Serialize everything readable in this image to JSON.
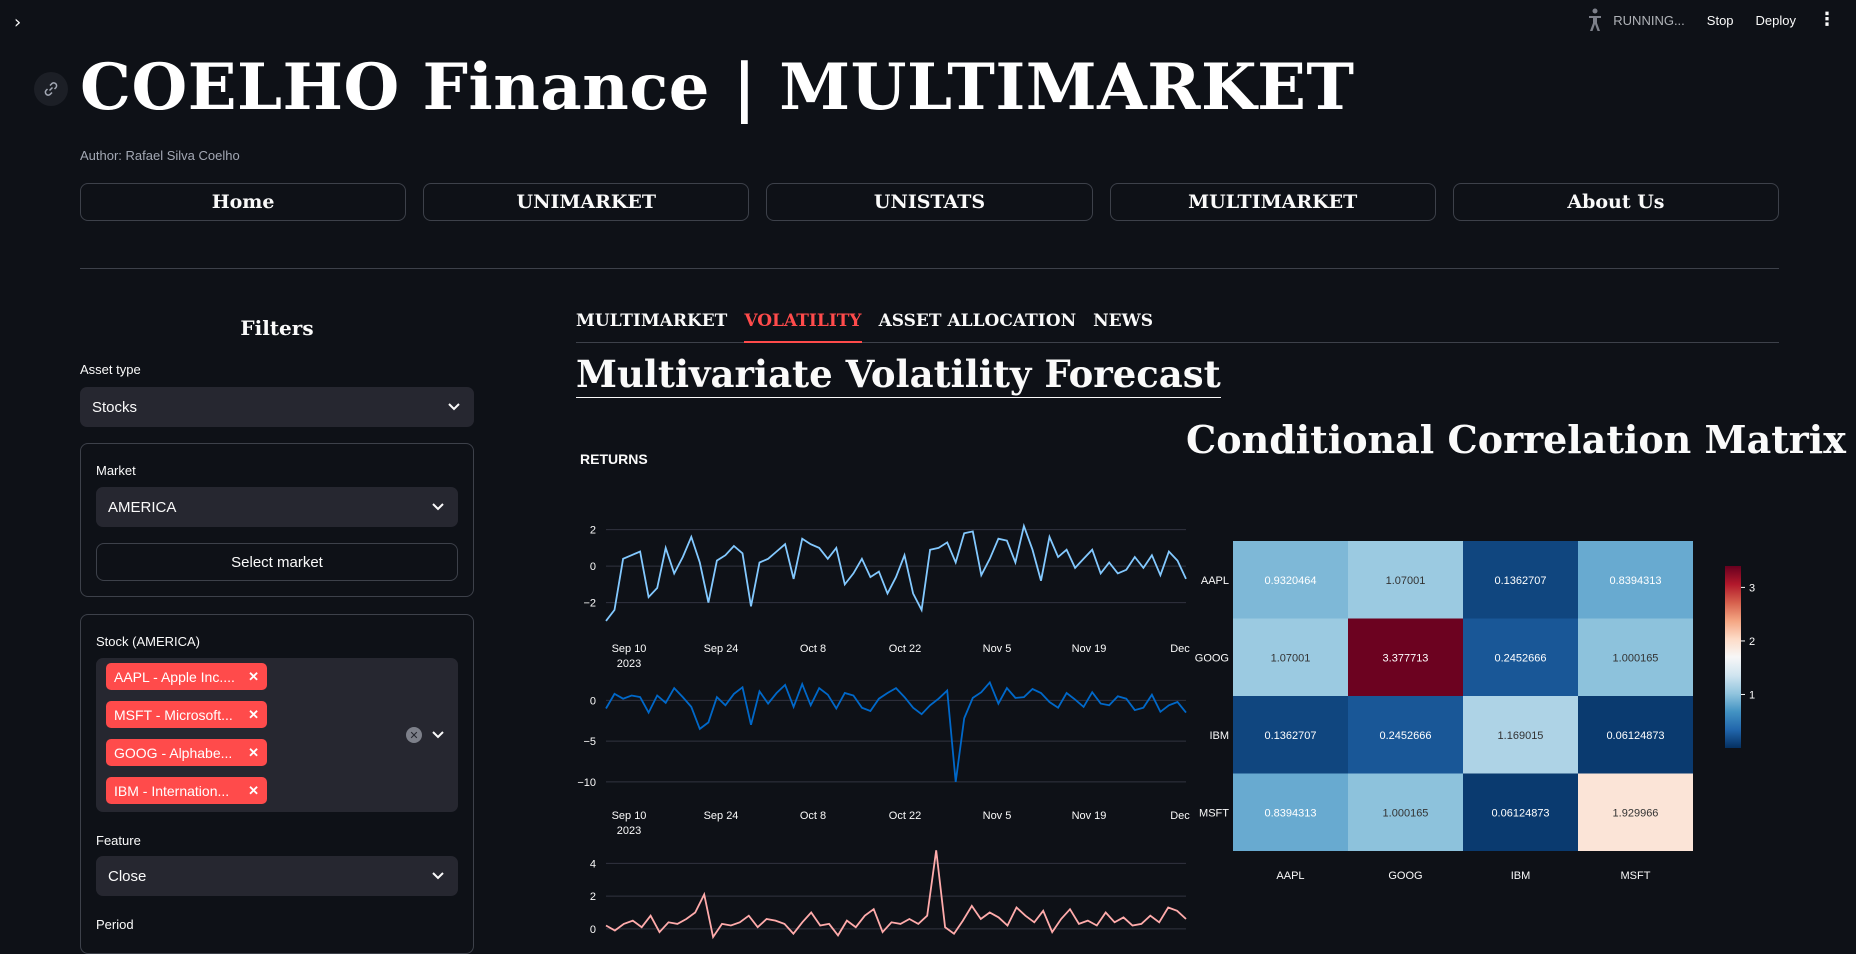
{
  "header": {
    "status": "RUNNING...",
    "stop": "Stop",
    "deploy": "Deploy"
  },
  "title": "COELHO Finance | MULTIMARKET",
  "author": "Author: Rafael Silva Coelho",
  "nav": [
    "Home",
    "UNIMARKET",
    "UNISTATS",
    "MULTIMARKET",
    "About Us"
  ],
  "filters": {
    "title": "Filters",
    "asset_type_label": "Asset type",
    "asset_type_value": "Stocks",
    "market_label": "Market",
    "market_value": "AMERICA",
    "select_market_button": "Select market",
    "stock_label": "Stock (AMERICA)",
    "stocks": [
      "AAPL - Apple Inc.",
      "MSFT - Microsoft Corporation",
      "GOOG - Alphabet Inc.",
      "IBM - International Business Machines"
    ],
    "stocks_display": [
      "AAPL - Apple Inc....",
      "MSFT - Microsoft...",
      "GOOG - Alphabe...",
      "IBM - Internation..."
    ],
    "feature_label": "Feature",
    "feature_value": "Close",
    "period_label": "Period"
  },
  "tabs": [
    "MULTIMARKET",
    "VOLATILITY",
    "ASSET ALLOCATION",
    "NEWS"
  ],
  "active_tab": "VOLATILITY",
  "section_title": "Multivariate Volatility Forecast",
  "returns_label": "RETURNS",
  "colors": {
    "accent": "#ff4b4b",
    "bg": "#0e1117",
    "line1": "#83c9ff",
    "line2": "#0068c9",
    "line3": "#ffabab"
  },
  "chart_data": [
    {
      "type": "line",
      "title": "RETURNS",
      "x_ticks": [
        "Sep 10",
        "Sep 24",
        "Oct 8",
        "Oct 22",
        "Nov 5",
        "Nov 19",
        "Dec"
      ],
      "x_year": "2023",
      "series": [
        {
          "name": "AAPL",
          "color": "#83c9ff",
          "ylim": [
            -3.5,
            2.8
          ],
          "yticks": [
            2,
            0,
            -2
          ],
          "values": [
            -3.0,
            -2.4,
            0.4,
            0.6,
            0.8,
            -1.7,
            -1.2,
            1.0,
            -0.4,
            0.5,
            1.6,
            0.2,
            -2.0,
            0.3,
            0.6,
            1.1,
            0.7,
            -2.2,
            0.2,
            0.4,
            0.8,
            1.2,
            -0.7,
            1.5,
            1.2,
            1.0,
            0.4,
            1.0,
            -1.0,
            -0.4,
            0.4,
            -0.6,
            -0.3,
            -1.5,
            -0.6,
            0.6,
            -1.5,
            -2.4,
            0.9,
            1.0,
            1.3,
            0.2,
            1.8,
            1.9,
            -0.5,
            0.4,
            1.5,
            1.4,
            0.2,
            2.2,
            0.9,
            -0.8,
            1.6,
            0.5,
            0.9,
            -0.1,
            0.4,
            0.9,
            -0.4,
            0.2,
            -0.4,
            -0.2,
            0.5,
            -0.1,
            0.6,
            -0.5,
            0.8,
            0.3,
            -0.7
          ]
        },
        {
          "name": "GOOG",
          "color": "#0068c9",
          "ylim": [
            -11,
            2.5
          ],
          "yticks": [
            0,
            -5,
            -10
          ],
          "values": [
            -1.0,
            0.8,
            0.2,
            0.6,
            0.4,
            -1.5,
            0.6,
            -0.3,
            1.5,
            0.4,
            -0.8,
            -3.5,
            -2.7,
            0.4,
            -0.6,
            0.8,
            1.6,
            -3.0,
            1.1,
            -0.4,
            0.9,
            1.9,
            -0.8,
            2.0,
            -0.6,
            1.5,
            0.7,
            -1.0,
            0.9,
            0.6,
            -0.9,
            -1.3,
            0.2,
            0.9,
            1.5,
            0.4,
            -0.9,
            -1.7,
            -0.6,
            0.2,
            1.2,
            -10.0,
            -2.2,
            0.3,
            1.0,
            2.2,
            -0.4,
            1.5,
            0.3,
            0.4,
            1.4,
            0.9,
            -0.2,
            -0.9,
            0.9,
            0.1,
            -0.8,
            1.0,
            -0.4,
            -0.6,
            0.5,
            0.2,
            -1.2,
            -0.9,
            0.7,
            -1.4,
            -0.6,
            -0.2,
            -1.5
          ]
        },
        {
          "name": "IBM",
          "color": "#ffabab",
          "ylim": [
            -0.5,
            5
          ],
          "yticks": [
            4,
            2,
            0
          ],
          "values": [
            0.2,
            -0.1,
            0.3,
            0.5,
            0.1,
            0.8,
            -0.2,
            0.4,
            0.3,
            0.6,
            1.0,
            2.1,
            -0.5,
            0.3,
            0.2,
            0.4,
            0.8,
            0.1,
            0.6,
            0.5,
            0.3,
            -0.3,
            0.4,
            1.0,
            0.2,
            0.3,
            -0.4,
            0.5,
            0.1,
            0.8,
            1.2,
            -0.2,
            0.4,
            0.3,
            0.6,
            0.3,
            0.8,
            4.8,
            0.1,
            -0.3,
            0.5,
            1.4,
            0.6,
            1.0,
            0.7,
            0.2,
            1.3,
            0.8,
            0.4,
            1.1,
            -0.2,
            0.6,
            1.2,
            0.3,
            0.5,
            0.2,
            1.0,
            0.4,
            0.7,
            0.2,
            0.3,
            0.8,
            0.4,
            1.3,
            1.1,
            0.6
          ]
        }
      ]
    },
    {
      "type": "heatmap",
      "title": "Conditional Correlation Matrix",
      "rows": [
        "AAPL",
        "GOOG",
        "IBM",
        "MSFT"
      ],
      "cols": [
        "AAPL",
        "GOOG",
        "IBM",
        "MSFT"
      ],
      "values": [
        [
          0.9320464,
          1.07001,
          0.1362707,
          0.8394313
        ],
        [
          1.07001,
          3.377713,
          0.2452666,
          1.000165
        ],
        [
          0.1362707,
          0.2452666,
          1.169015,
          0.06124873
        ],
        [
          0.8394313,
          1.000165,
          0.06124873,
          1.929966
        ]
      ],
      "value_labels": [
        [
          "0.9320464",
          "1.07001",
          "0.1362707",
          "0.8394313"
        ],
        [
          "1.07001",
          "3.377713",
          "0.2452666",
          "1.000165"
        ],
        [
          "0.1362707",
          "0.2452666",
          "1.169015",
          "0.06124873"
        ],
        [
          "0.8394313",
          "1.000165",
          "0.06124873",
          "1.929966"
        ]
      ],
      "colorscale": "RdBu_r",
      "zlim": [
        0,
        3.4
      ],
      "colorbar_ticks": [
        "3",
        "2",
        "1"
      ],
      "colorbar_tick_values": [
        3,
        2,
        1
      ]
    }
  ]
}
